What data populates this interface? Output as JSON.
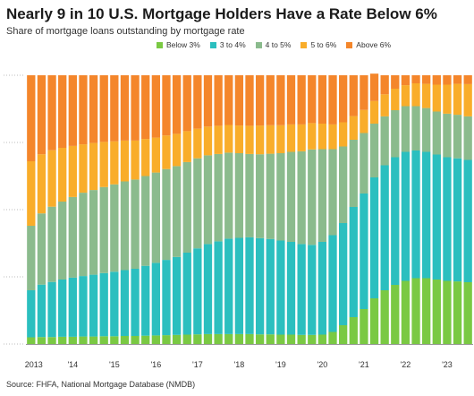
{
  "header": {
    "title": "Nearly 9 in 10 U.S. Mortgage Holders Have a Rate Below 6%",
    "subtitle": "Share of mortgage loans outstanding by mortgage rate"
  },
  "footer": {
    "source": "Source: FHFA, National Mortgage Database (NMDB)"
  },
  "chart_data": {
    "type": "bar",
    "stacked": true,
    "legend_position": "top",
    "grid": true,
    "ylim": [
      0,
      100
    ],
    "x_tick_labels": [
      "2013",
      "'14",
      "'15",
      "'16",
      "'17",
      "'18",
      "'19",
      "'20",
      "'21",
      "'22",
      "'23"
    ],
    "categories": [
      "2013 Q1",
      "2013 Q2",
      "2013 Q3",
      "2013 Q4",
      "2014 Q1",
      "2014 Q2",
      "2014 Q3",
      "2014 Q4",
      "2015 Q1",
      "2015 Q2",
      "2015 Q3",
      "2015 Q4",
      "2016 Q1",
      "2016 Q2",
      "2016 Q3",
      "2016 Q4",
      "2017 Q1",
      "2017 Q2",
      "2017 Q3",
      "2017 Q4",
      "2018 Q1",
      "2018 Q2",
      "2018 Q3",
      "2018 Q4",
      "2019 Q1",
      "2019 Q2",
      "2019 Q3",
      "2019 Q4",
      "2020 Q1",
      "2020 Q2",
      "2020 Q3",
      "2020 Q4",
      "2021 Q1",
      "2021 Q2",
      "2021 Q3",
      "2021 Q4",
      "2022 Q1",
      "2022 Q2",
      "2022 Q3",
      "2022 Q4",
      "2023 Q1",
      "2023 Q2",
      "2023 Q3"
    ],
    "series": [
      {
        "name": "Below 3%",
        "color": "#7ac943",
        "values": [
          2.5,
          2.6,
          2.6,
          2.7,
          2.7,
          2.8,
          2.8,
          2.9,
          2.9,
          3,
          3,
          3.1,
          3.2,
          3.3,
          3.4,
          3.5,
          3.6,
          3.7,
          3.7,
          3.7,
          3.7,
          3.7,
          3.6,
          3.6,
          3.5,
          3.5,
          3.4,
          3.4,
          3.5,
          4.5,
          7,
          10,
          13,
          17,
          20,
          22,
          23.5,
          24.5,
          24.5,
          24,
          23.5,
          23.3,
          23
        ]
      },
      {
        "name": "3 to 4%",
        "color": "#2bbfbf",
        "values": [
          17.5,
          19.5,
          20.5,
          21.3,
          22,
          22.5,
          23,
          23.5,
          24,
          24.5,
          25,
          26,
          27,
          28,
          29,
          30.5,
          32,
          33.5,
          34.5,
          35.5,
          35.8,
          36,
          35.8,
          35.5,
          35,
          34.5,
          33.8,
          33.5,
          34.5,
          36,
          38,
          41,
          43,
          45,
          46.5,
          47.5,
          48,
          47.5,
          47,
          46.5,
          46,
          45.8,
          45.5
        ]
      },
      {
        "name": "4 to 5%",
        "color": "#8bbb8d",
        "values": [
          24,
          26.5,
          28,
          29,
          30,
          31,
          31.5,
          32,
          32.5,
          33,
          33.2,
          33.4,
          33.6,
          33.8,
          33.8,
          33.7,
          33.5,
          33,
          32.5,
          32,
          31.5,
          31,
          31.2,
          31.7,
          32.5,
          33.5,
          34.5,
          35.5,
          34.5,
          32,
          28.5,
          25,
          22.5,
          20,
          18.2,
          17.5,
          17,
          16.5,
          16.3,
          16,
          16.2,
          16.2,
          16.2
        ]
      },
      {
        "name": "5 to 6%",
        "color": "#f9ad2a",
        "values": [
          24,
          22,
          21,
          20,
          19,
          18,
          17.5,
          16.8,
          16,
          15.2,
          14.5,
          13.8,
          13,
          12.5,
          12,
          11.5,
          11,
          10.7,
          10.5,
          10.3,
          10.3,
          10.5,
          10.7,
          10.6,
          10.4,
          10.2,
          10,
          9.8,
          9.5,
          9.2,
          9,
          8.8,
          8.6,
          8.4,
          8.2,
          8,
          7.8,
          8.5,
          9,
          10,
          10.8,
          11.5,
          12
        ]
      },
      {
        "name": "Above 6%",
        "color": "#f4862b",
        "values": [
          32,
          29.4,
          27.9,
          27,
          26.3,
          25.7,
          25.2,
          24.8,
          24.6,
          24.3,
          24.3,
          23.7,
          23.2,
          22.4,
          21.8,
          20.8,
          19.9,
          19.1,
          18.8,
          18.5,
          18.7,
          18.8,
          18.7,
          18.6,
          18.6,
          18.3,
          18.3,
          17.8,
          18,
          18.3,
          17.5,
          15.2,
          12.9,
          10.2,
          7.1,
          5,
          3.7,
          3,
          3.2,
          3.5,
          3.5,
          3.2,
          3.3
        ]
      }
    ]
  }
}
